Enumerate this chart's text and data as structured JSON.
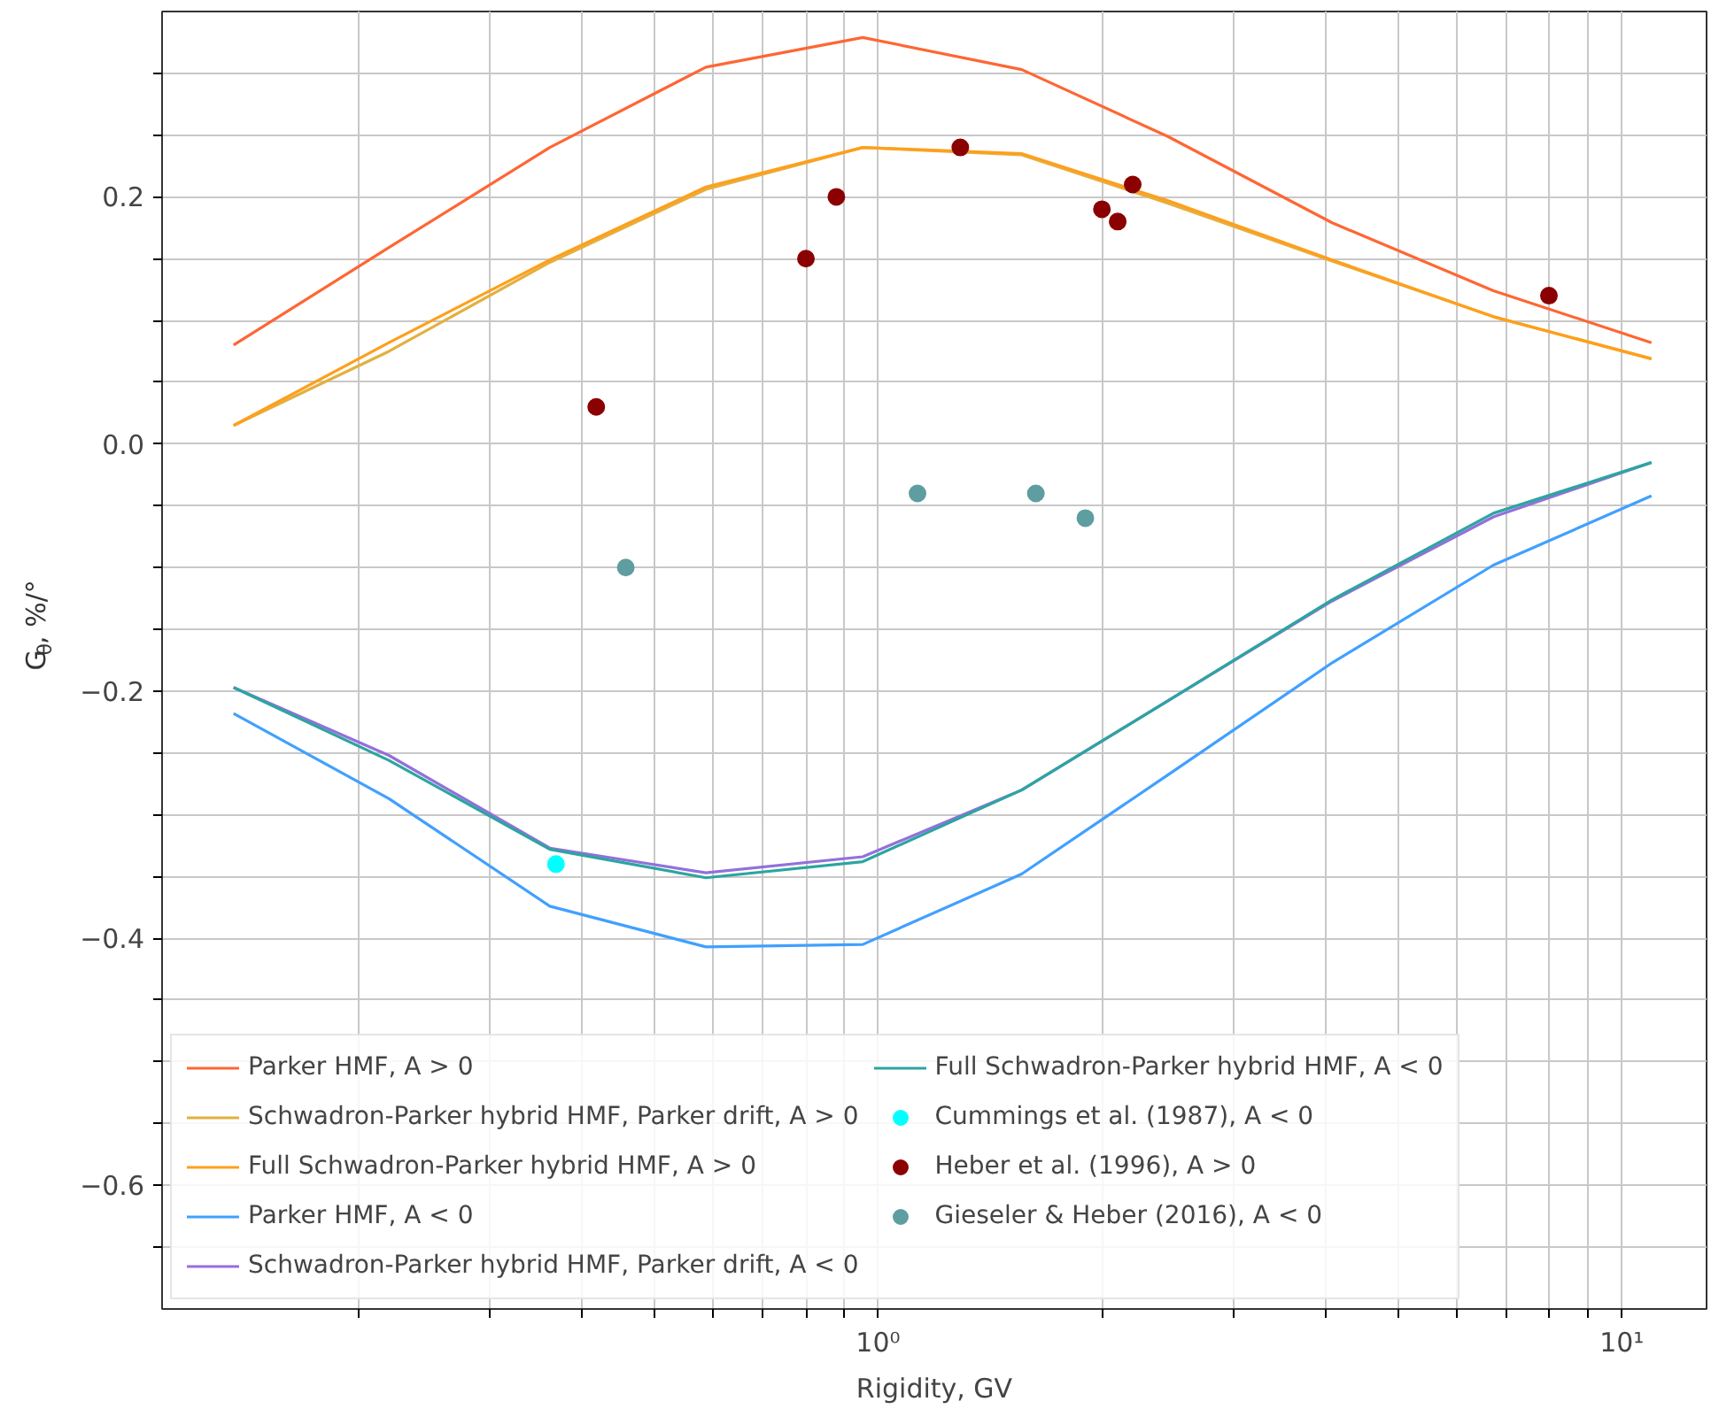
{
  "chart_data": {
    "type": "line",
    "xlabel": "Rigidity, GV",
    "ylabel": "G$_{θ}$, %/°",
    "log": "x",
    "grid": true,
    "legend": "bottom left",
    "line_style": "solid",
    "xlim": [
      0.109,
      13.0
    ],
    "ylim": [
      -0.7,
      0.35
    ],
    "xticks": [
      {
        "value": 0.2,
        "label": null
      },
      {
        "value": 0.3,
        "label": null
      },
      {
        "value": 0.4,
        "label": null
      },
      {
        "value": 0.5,
        "label": null
      },
      {
        "value": 0.6,
        "label": null
      },
      {
        "value": 0.7,
        "label": null
      },
      {
        "value": 0.8,
        "label": null
      },
      {
        "value": 0.9,
        "label": null
      },
      {
        "value": 1,
        "label": "10⁰"
      },
      {
        "value": 2,
        "label": null
      },
      {
        "value": 3,
        "label": null
      },
      {
        "value": 4,
        "label": null
      },
      {
        "value": 5,
        "label": null
      },
      {
        "value": 6,
        "label": null
      },
      {
        "value": 7,
        "label": null
      },
      {
        "value": 8,
        "label": null
      },
      {
        "value": 9,
        "label": null
      },
      {
        "value": 10,
        "label": "10¹"
      }
    ],
    "yticks": [
      {
        "value": -0.65,
        "label": null
      },
      {
        "value": -0.6,
        "label": "−0.6"
      },
      {
        "value": -0.55,
        "label": null
      },
      {
        "value": -0.5,
        "label": null
      },
      {
        "value": -0.45,
        "label": null
      },
      {
        "value": -0.4,
        "label": "−0.4"
      },
      {
        "value": -0.35,
        "label": null
      },
      {
        "value": -0.3,
        "label": null
      },
      {
        "value": -0.25,
        "label": null
      },
      {
        "value": -0.2,
        "label": "−0.2"
      },
      {
        "value": -0.15,
        "label": null
      },
      {
        "value": -0.1,
        "label": null
      },
      {
        "value": -0.05,
        "label": null
      },
      {
        "value": 0.0,
        "label": "0.0"
      },
      {
        "value": 0.05,
        "label": null
      },
      {
        "value": 0.1,
        "label": null
      },
      {
        "value": 0.15,
        "label": null
      },
      {
        "value": 0.2,
        "label": "0.2"
      },
      {
        "value": 0.25,
        "label": null
      },
      {
        "value": 0.3,
        "label": null
      }
    ],
    "x": [
      0.136,
      0.22,
      0.362,
      0.587,
      0.954,
      1.56,
      2.45,
      4.08,
      6.72,
      10.96
    ],
    "series": [
      {
        "name": "Parker HMF, A > 0",
        "color": "#ff6633",
        "values": [
          0.08,
          0.159,
          0.24,
          0.305,
          0.329,
          0.303,
          0.249,
          0.179,
          0.124,
          0.082
        ]
      },
      {
        "name": "Schwadron-Parker hybrid HMF, Parker drift, A > 0",
        "color": "#e3b040",
        "values": [
          0.015,
          0.075,
          0.147,
          0.206,
          0.24,
          0.234,
          0.195,
          0.148,
          0.103,
          0.069
        ]
      },
      {
        "name": "Full Schwadron-Parker hybrid HMF, A > 0",
        "color": "#ff9f1c",
        "values": [
          0.015,
          0.082,
          0.149,
          0.208,
          0.24,
          0.235,
          0.197,
          0.149,
          0.103,
          0.069
        ]
      },
      {
        "name": "Parker HMF, A < 0",
        "color": "#40a0ff",
        "values": [
          -0.218,
          -0.287,
          -0.374,
          -0.407,
          -0.405,
          -0.348,
          -0.268,
          -0.177,
          -0.098,
          -0.042
        ]
      },
      {
        "name": "Schwadron-Parker hybrid HMF, Parker drift, A < 0",
        "color": "#9370db",
        "values": [
          -0.197,
          -0.252,
          -0.327,
          -0.347,
          -0.334,
          -0.28,
          -0.208,
          -0.127,
          -0.059,
          -0.015
        ]
      },
      {
        "name": "Full Schwadron-Parker hybrid HMF, A < 0",
        "color": "#2ca5a0",
        "values": [
          -0.197,
          -0.256,
          -0.328,
          -0.351,
          -0.338,
          -0.28,
          -0.208,
          -0.126,
          -0.056,
          -0.015
        ]
      },
      {
        "name": "Cummings et al. (1987), A < 0",
        "type": "scatter",
        "marker": "circle",
        "color": "#00ffff",
        "x": [
          0.369
        ],
        "values": [
          -0.34
        ]
      },
      {
        "name": "Heber et al. (1996), A > 0",
        "type": "scatter",
        "marker": "circle",
        "color": "#8b0000",
        "x": [
          0.418,
          0.8,
          0.879,
          1.29,
          2.0,
          2.1,
          2.2,
          7.98
        ],
        "values": [
          0.03,
          0.15,
          0.2,
          0.24,
          0.19,
          0.18,
          0.21,
          0.12
        ]
      },
      {
        "name": "Gieseler & Heber (2016), A < 0",
        "type": "scatter",
        "marker": "circle",
        "color": "#5f9ea0",
        "x": [
          0.458,
          1.13,
          1.63,
          1.9
        ],
        "values": [
          -0.1,
          -0.04,
          -0.04,
          -0.06
        ]
      }
    ]
  }
}
